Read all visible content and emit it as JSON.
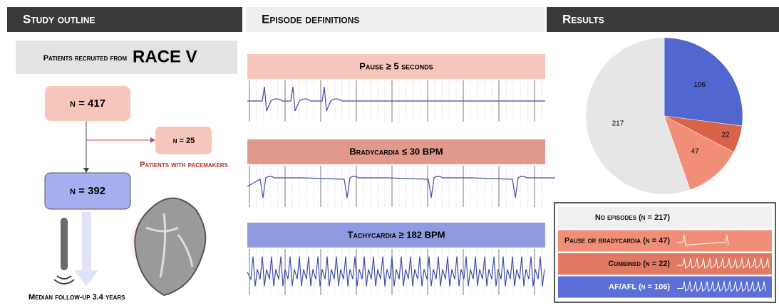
{
  "headers": [
    "Study outline",
    "Episode definitions",
    "Results"
  ],
  "outline": {
    "source_prefix": "Patients recruited from",
    "source_name": "RACE V",
    "n_total": "n = 417",
    "n_excluded": "n = 25",
    "excluded_label": "Patients with pacemakers",
    "n_included": "n = 392",
    "follow_up": "Median follow-up 3.4 years"
  },
  "episodes": [
    "Pause ≥ 5 seconds",
    "Bradycardia ≤ 30 BPM",
    "Tachycardia ≥ 182 BPM"
  ],
  "chart_data": {
    "type": "pie",
    "values": [
      106,
      22,
      47,
      217
    ],
    "colors": [
      "#5266d0",
      "#d9634a",
      "#f08e78",
      "#e6e6e6"
    ]
  },
  "legend": {
    "rows": [
      "No episodes (n = 217)",
      "Pause or bradycardia (n = 47)",
      "Combined (n = 22)",
      "AF/AFL (n = 106)"
    ],
    "colors": [
      "#f0f0f0",
      "#f08e78",
      "#e07a62",
      "#5b6fd6"
    ]
  }
}
